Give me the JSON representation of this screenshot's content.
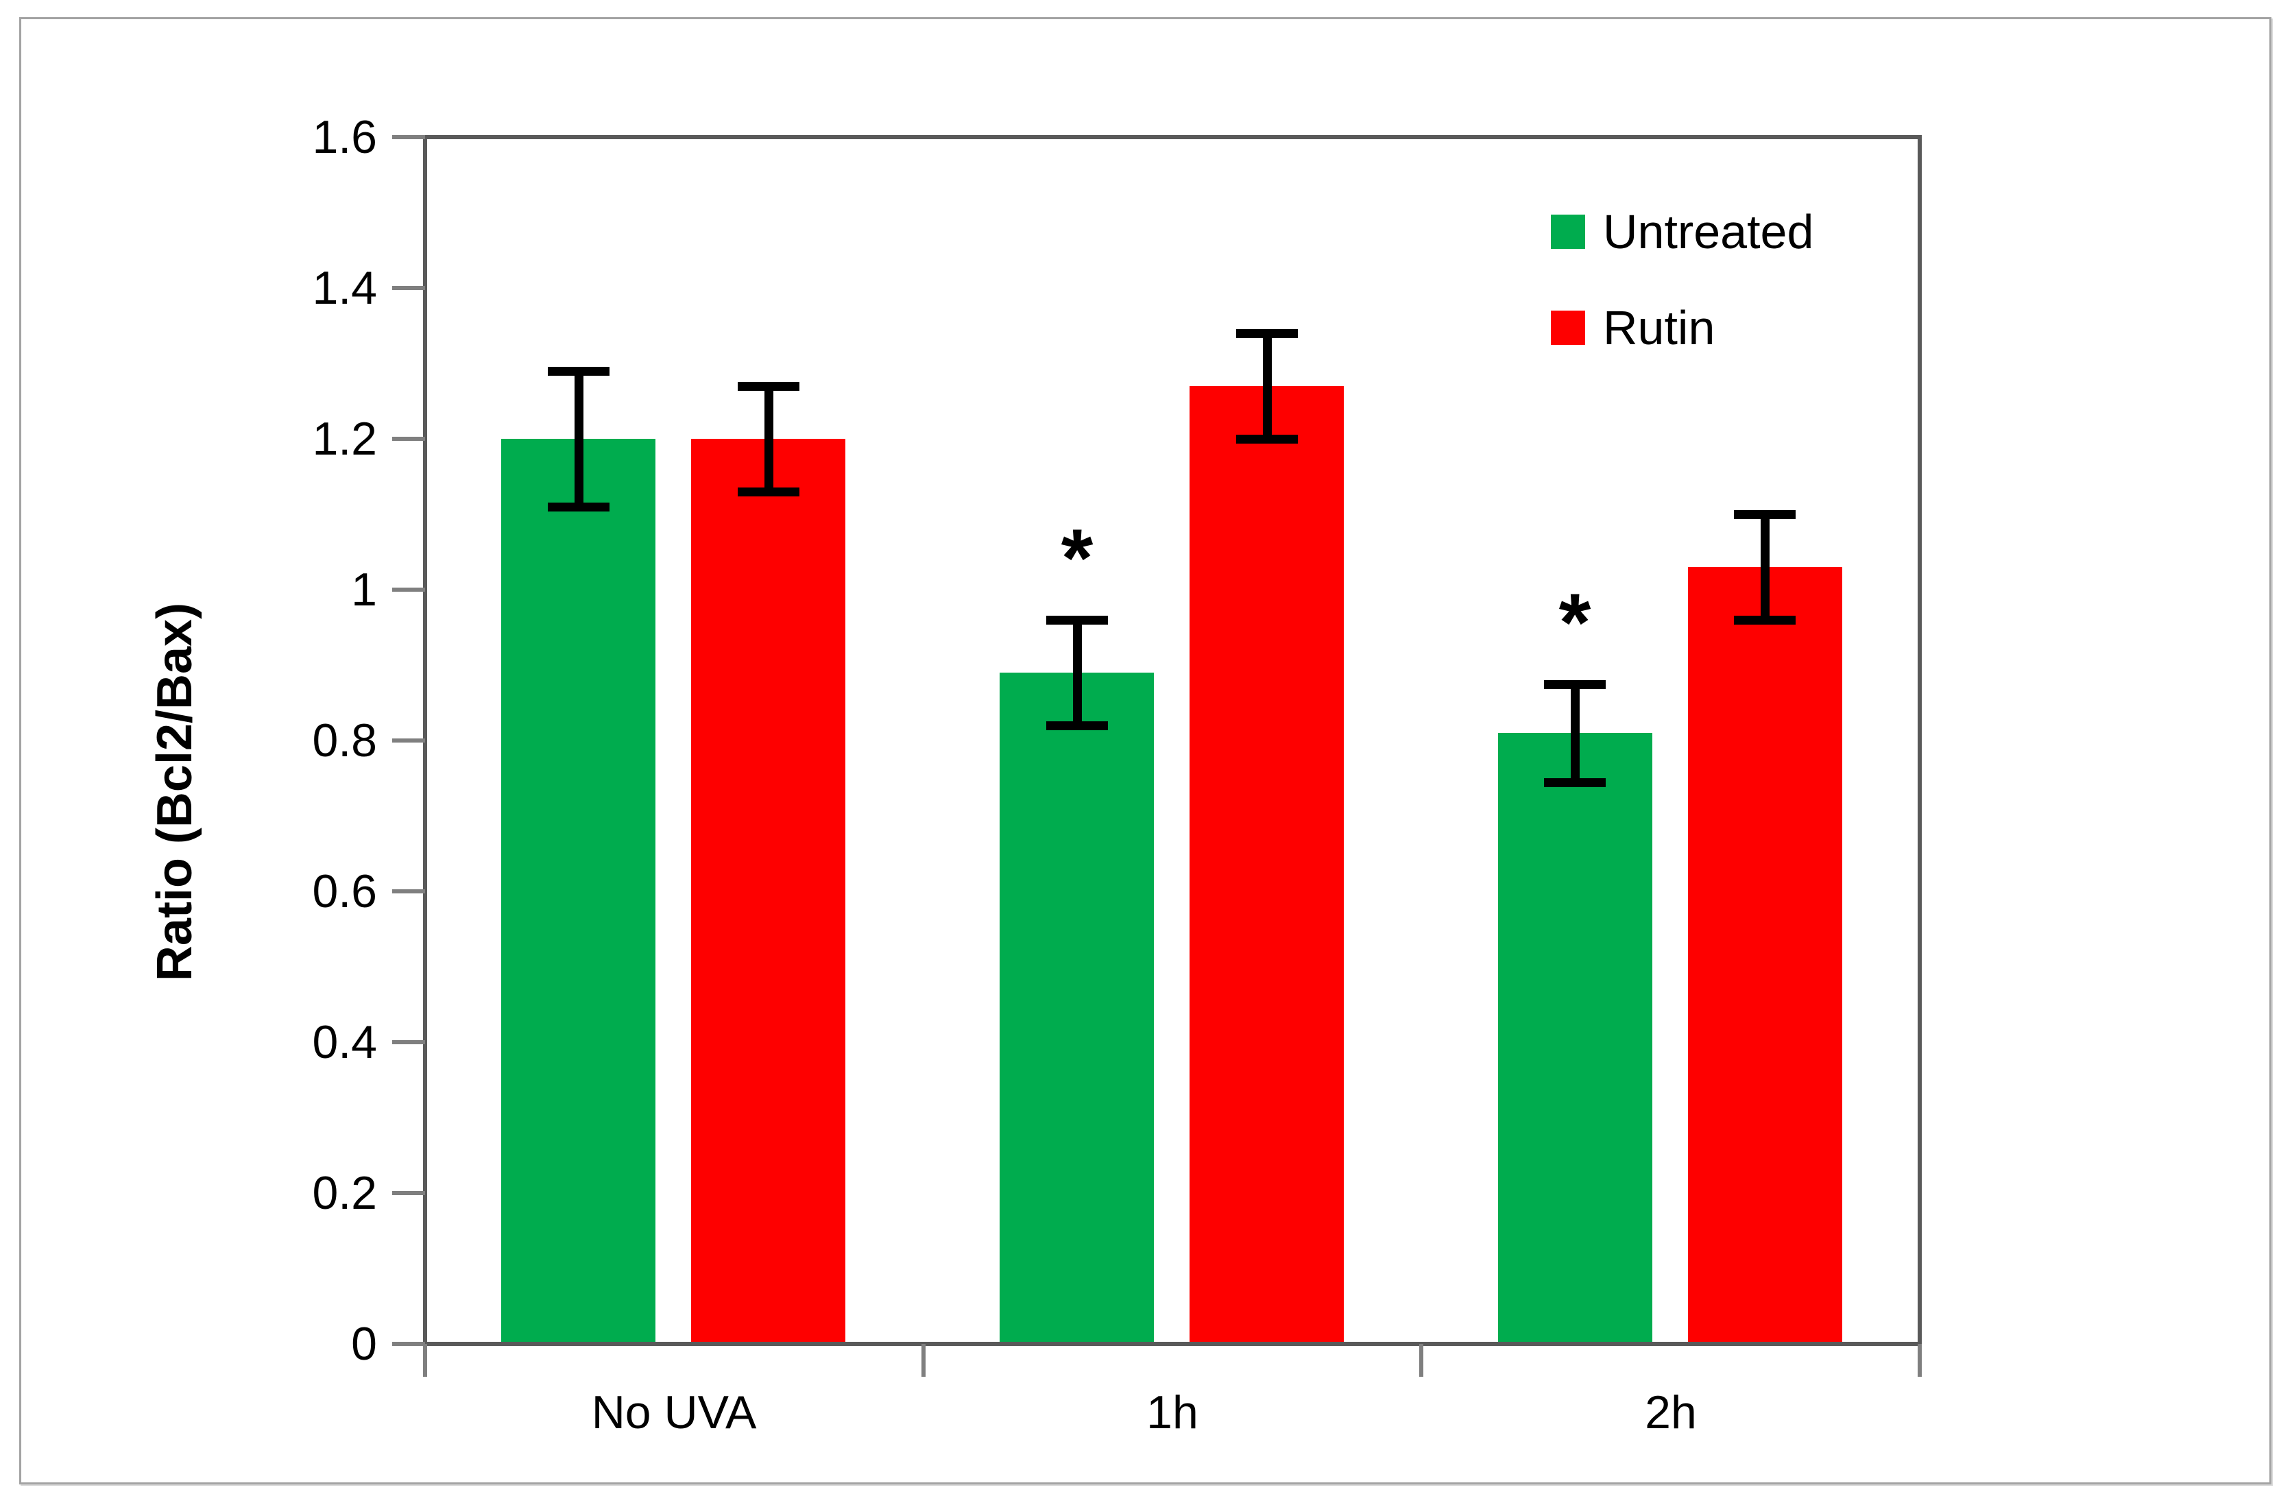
{
  "chart_data": {
    "type": "bar",
    "title": "",
    "xlabel": "",
    "ylabel": "Ratio (Bcl2/Bax)",
    "categories": [
      "No UVA",
      "1h",
      "2h"
    ],
    "series": [
      {
        "name": "Untreated",
        "color": "#00AC4E",
        "values": [
          1.2,
          0.89,
          0.81
        ],
        "errors": [
          0.09,
          0.07,
          0.065
        ],
        "significance": [
          "",
          "*",
          "*"
        ]
      },
      {
        "name": "Rutin",
        "color": "#FE0000",
        "values": [
          1.2,
          1.27,
          1.03
        ],
        "errors": [
          0.07,
          0.07,
          0.07
        ],
        "significance": [
          "",
          "",
          ""
        ]
      }
    ],
    "ylim": [
      0,
      1.6
    ],
    "ytick_step": 0.2,
    "ytick_labels": [
      "0",
      "0.2",
      "0.4",
      "0.6",
      "0.8",
      "1",
      "1.2",
      "1.4",
      "1.6"
    ],
    "grid": false,
    "legend_position": "top-right",
    "error_bars": true
  },
  "colors": {
    "untreated": "#00AC4E",
    "rutin": "#FE0000",
    "axis_line": "#595959",
    "tick_mark": "#7f7f7f",
    "error_bar": "#000000",
    "outer_border": "#a3a3a3",
    "background": "#ffffff"
  }
}
